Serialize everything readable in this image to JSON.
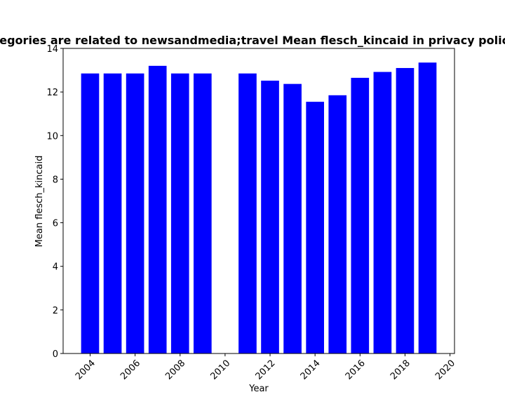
{
  "chart_data": {
    "type": "bar",
    "title": "Categories are related to newsandmedia;travel Mean flesch_kincaid in privacy policies",
    "xlabel": "Year",
    "ylabel": "Mean flesch_kincaid",
    "x": [
      2004,
      2005,
      2006,
      2007,
      2008,
      2009,
      2011,
      2012,
      2013,
      2014,
      2015,
      2016,
      2017,
      2018,
      2019
    ],
    "values": [
      12.85,
      12.85,
      12.85,
      13.2,
      12.85,
      12.85,
      12.85,
      12.52,
      12.37,
      11.55,
      11.85,
      12.65,
      12.92,
      13.1,
      13.35
    ],
    "xlim": [
      2002.8,
      2020.2
    ],
    "ylim": [
      0,
      14
    ],
    "xticks": [
      2004,
      2006,
      2008,
      2010,
      2012,
      2014,
      2016,
      2018,
      2020
    ],
    "yticks": [
      0,
      2,
      4,
      6,
      8,
      10,
      12,
      14
    ],
    "bar_color": "#0000ff",
    "grid": false,
    "legend": "none"
  }
}
